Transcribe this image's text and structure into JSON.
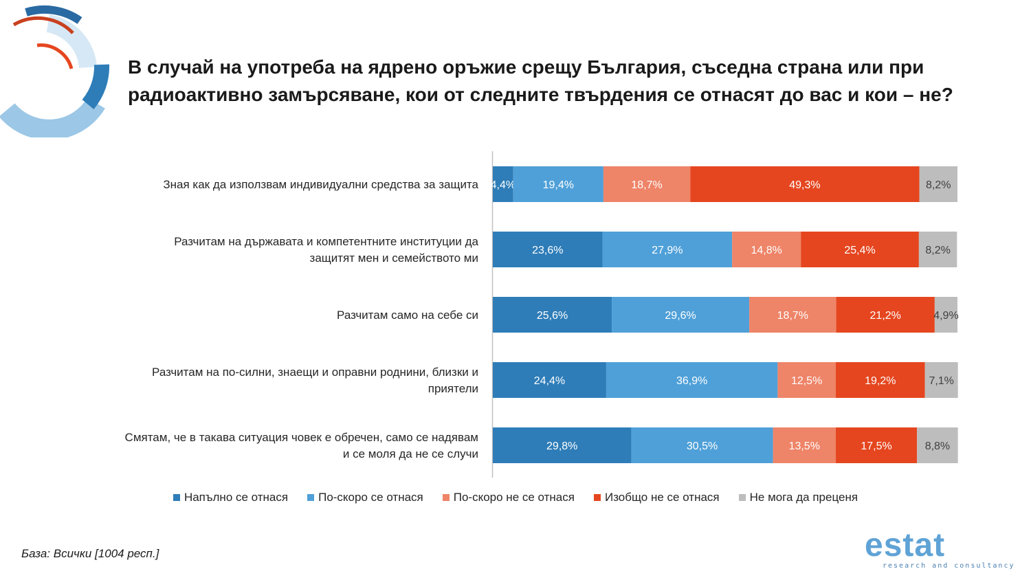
{
  "title_lines": [
    "В случай на употреба на ядрено оръжие срещу България, съседна страна или при",
    "радиоактивно замърсяване, кои от следните твърдения се отнасят до вас и кои – не?"
  ],
  "base_note": "База: Всички [1004 респ.]",
  "logo": {
    "word": "estat",
    "subtitle": "research and consultancy"
  },
  "colors": {
    "dark_blue": "#2e7db8",
    "light_blue": "#4fa0d8",
    "salmon": "#ee8468",
    "red_orange": "#e5461f",
    "gray": "#bdbdbd"
  },
  "chart_data": {
    "type": "bar",
    "orientation": "horizontal",
    "stacked": true,
    "percent": true,
    "categories": [
      "Зная как да използвам индивидуални средства за защита",
      "Разчитам на държавата и компетентните институции да защитят мен и семейството ми",
      "Разчитам само на себе си",
      "Разчитам на по-силни, знаещи и оправни роднини, близки и приятели",
      "Смятам, че в такава ситуация човек е обречен, само се надявам и се моля да не се случи"
    ],
    "category_lines": [
      [
        "Зная как да използвам индивидуални средства за защита"
      ],
      [
        "Разчитам на държавата и компетентните институции да",
        "защитят мен и семейството ми"
      ],
      [
        "Разчитам само на себе си"
      ],
      [
        "Разчитам на по-силни, знаещи и оправни роднини, близки и",
        "приятели"
      ],
      [
        "Смятам, че в такава ситуация човек е обречен, само се надявам",
        "и се моля да не се случи"
      ]
    ],
    "series": [
      {
        "name": "Напълно се отнася",
        "color": "#2e7db8",
        "label_color": "#ffffff",
        "values": [
          4.4,
          23.6,
          25.6,
          24.4,
          29.8
        ],
        "labels": [
          "4,4%",
          "23,6%",
          "25,6%",
          "24,4%",
          "29,8%"
        ]
      },
      {
        "name": "По-скоро се отнася",
        "color": "#4fa0d8",
        "label_color": "#ffffff",
        "values": [
          19.4,
          27.9,
          29.6,
          36.9,
          30.5
        ],
        "labels": [
          "19,4%",
          "27,9%",
          "29,6%",
          "36,9%",
          "30,5%"
        ]
      },
      {
        "name": "По-скоро не се отнася",
        "color": "#ee8468",
        "label_color": "#ffffff",
        "values": [
          18.7,
          14.8,
          18.7,
          12.5,
          13.5
        ],
        "labels": [
          "18,7%",
          "14,8%",
          "18,7%",
          "12,5%",
          "13,5%"
        ]
      },
      {
        "name": "Изобщо не се отнася",
        "color": "#e5461f",
        "label_color": "#ffffff",
        "values": [
          49.3,
          25.4,
          21.2,
          19.2,
          17.5
        ],
        "labels": [
          "49,3%",
          "25,4%",
          "21,2%",
          "19,2%",
          "17,5%"
        ]
      },
      {
        "name": "Не мога да преценя",
        "color": "#bdbdbd",
        "label_color": "#404040",
        "values": [
          8.2,
          8.2,
          4.9,
          7.1,
          8.8
        ],
        "labels": [
          "8,2%",
          "8,2%",
          "4,9%",
          "7,1%",
          "8,8%"
        ]
      }
    ],
    "xlim": [
      0,
      100
    ],
    "grid": false,
    "legend_position": "bottom"
  }
}
